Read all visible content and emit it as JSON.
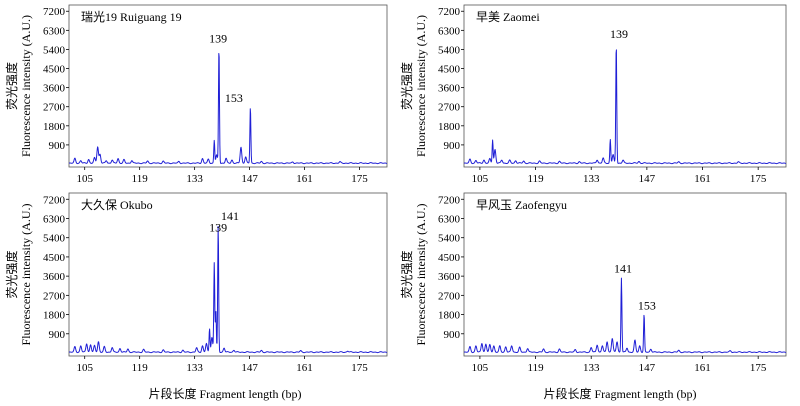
{
  "figure": {
    "xlabel": "片段长度 Fragment length (bp)",
    "ylabel_line1": "荧光强度",
    "ylabel_line2": "Fluorescence intensity (A.U.)"
  },
  "chart_data": [
    {
      "type": "line",
      "title": "瑞光19 Ruiguang 19",
      "xlim": [
        101,
        182
      ],
      "ylim": [
        0,
        7400
      ],
      "xticks": [
        105,
        119,
        133,
        147,
        161,
        175
      ],
      "yticks": [
        900,
        1800,
        2700,
        3600,
        4500,
        5400,
        6300,
        7200
      ],
      "peak_labels": [
        {
          "text": "139",
          "x": 139,
          "y": 5450
        },
        {
          "text": "153",
          "x": 143,
          "y": 2650
        }
      ],
      "peaks": [
        [
          102.5,
          220
        ],
        [
          104,
          120
        ],
        [
          106,
          180
        ],
        [
          107.5,
          250
        ],
        [
          108.3,
          780
        ],
        [
          108.9,
          420
        ],
        [
          110.5,
          120
        ],
        [
          112,
          150
        ],
        [
          113.5,
          220
        ],
        [
          115,
          160
        ],
        [
          117,
          130
        ],
        [
          121,
          100
        ],
        [
          125,
          90
        ],
        [
          129,
          80
        ],
        [
          135,
          220
        ],
        [
          136.5,
          180
        ],
        [
          138,
          1080
        ],
        [
          138.6,
          380
        ],
        [
          139.2,
          5450
        ],
        [
          141,
          230
        ],
        [
          142.5,
          150
        ],
        [
          144.8,
          760
        ],
        [
          146,
          300
        ],
        [
          147.2,
          2650
        ],
        [
          150,
          80
        ],
        [
          158,
          60
        ],
        [
          170,
          60
        ]
      ]
    },
    {
      "type": "line",
      "title": "早美 Zaomei",
      "xlim": [
        101,
        182
      ],
      "ylim": [
        0,
        7400
      ],
      "xticks": [
        105,
        119,
        133,
        147,
        161,
        175
      ],
      "yticks": [
        900,
        1800,
        2700,
        3600,
        4500,
        5400,
        6300,
        7200
      ],
      "peak_labels": [
        {
          "text": "139",
          "x": 140,
          "y": 5650
        }
      ],
      "peaks": [
        [
          102.5,
          180
        ],
        [
          104,
          130
        ],
        [
          106,
          150
        ],
        [
          107.5,
          200
        ],
        [
          108.2,
          1100
        ],
        [
          108.8,
          650
        ],
        [
          110.5,
          150
        ],
        [
          112.5,
          130
        ],
        [
          114,
          120
        ],
        [
          116,
          100
        ],
        [
          120,
          90
        ],
        [
          125,
          80
        ],
        [
          130,
          70
        ],
        [
          134.5,
          160
        ],
        [
          136,
          240
        ],
        [
          137.8,
          1120
        ],
        [
          138.5,
          400
        ],
        [
          139.3,
          5650
        ],
        [
          141,
          140
        ],
        [
          145,
          80
        ],
        [
          155,
          60
        ],
        [
          170,
          55
        ]
      ]
    },
    {
      "type": "line",
      "title": "大久保 Okubo",
      "xlim": [
        101,
        182
      ],
      "ylim": [
        0,
        7400
      ],
      "xticks": [
        105,
        119,
        133,
        147,
        161,
        175
      ],
      "yticks": [
        900,
        1800,
        2700,
        3600,
        4500,
        5400,
        6300,
        7200
      ],
      "peak_labels": [
        {
          "text": "139",
          "x": 139,
          "y": 5400
        },
        {
          "text": "141",
          "x": 142,
          "y": 5950
        }
      ],
      "peaks": [
        [
          102.5,
          250
        ],
        [
          104,
          300
        ],
        [
          105.5,
          400
        ],
        [
          106.5,
          350
        ],
        [
          107.5,
          300
        ],
        [
          108.5,
          500
        ],
        [
          110,
          250
        ],
        [
          112,
          220
        ],
        [
          114,
          180
        ],
        [
          116,
          150
        ],
        [
          120,
          120
        ],
        [
          125,
          100
        ],
        [
          130,
          90
        ],
        [
          133.5,
          200
        ],
        [
          135,
          300
        ],
        [
          136,
          400
        ],
        [
          136.8,
          1100
        ],
        [
          137.4,
          700
        ],
        [
          138,
          4200
        ],
        [
          138.4,
          2000
        ],
        [
          139,
          5950
        ],
        [
          140.5,
          200
        ],
        [
          143,
          100
        ],
        [
          150,
          80
        ],
        [
          160,
          60
        ],
        [
          172,
          55
        ]
      ]
    },
    {
      "type": "line",
      "title": "早风玉 Zaofengyu",
      "xlim": [
        101,
        182
      ],
      "ylim": [
        0,
        7400
      ],
      "xticks": [
        105,
        119,
        133,
        147,
        161,
        175
      ],
      "yticks": [
        900,
        1800,
        2700,
        3600,
        4500,
        5400,
        6300,
        7200
      ],
      "peak_labels": [
        {
          "text": "141",
          "x": 141,
          "y": 3480
        },
        {
          "text": "153",
          "x": 147,
          "y": 1760
        }
      ],
      "peaks": [
        [
          102.5,
          250
        ],
        [
          104,
          300
        ],
        [
          105.5,
          420
        ],
        [
          106.5,
          380
        ],
        [
          107.5,
          340
        ],
        [
          108.5,
          300
        ],
        [
          110,
          280
        ],
        [
          111.5,
          260
        ],
        [
          113,
          300
        ],
        [
          115,
          220
        ],
        [
          117,
          180
        ],
        [
          121,
          150
        ],
        [
          125,
          140
        ],
        [
          129,
          120
        ],
        [
          133,
          220
        ],
        [
          134.5,
          350
        ],
        [
          135.8,
          300
        ],
        [
          137,
          500
        ],
        [
          138.3,
          650
        ],
        [
          139.5,
          500
        ],
        [
          140.6,
          3480
        ],
        [
          142,
          200
        ],
        [
          144,
          550
        ],
        [
          145.2,
          300
        ],
        [
          146.3,
          1760
        ],
        [
          148,
          150
        ],
        [
          155,
          80
        ],
        [
          168,
          60
        ]
      ]
    }
  ]
}
